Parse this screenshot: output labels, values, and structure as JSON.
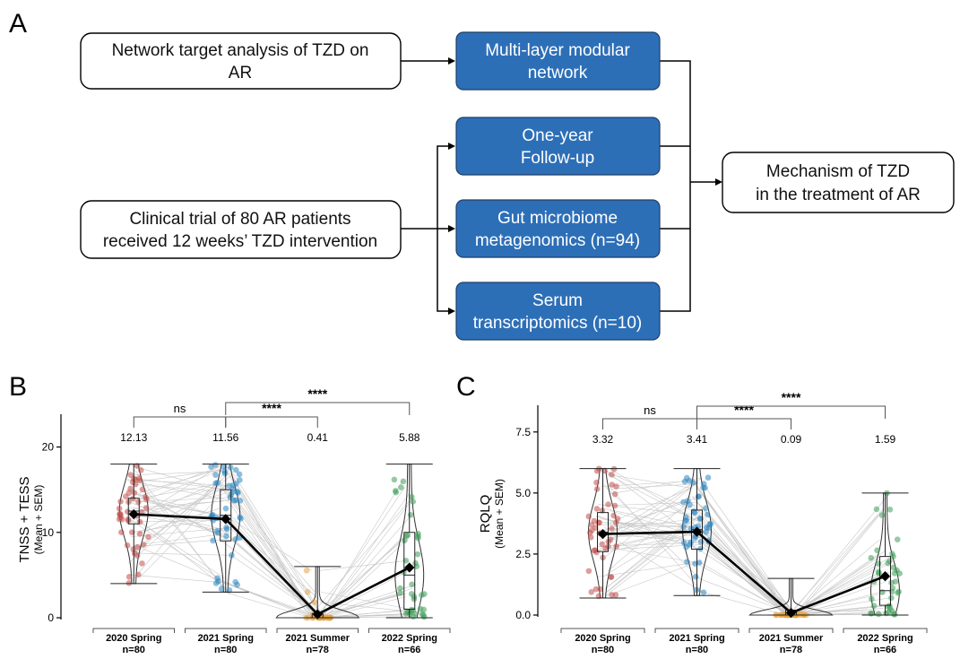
{
  "panels": {
    "a": "A",
    "b": "B",
    "c": "C"
  },
  "flow": {
    "inputs": [
      {
        "id": "network",
        "lines": [
          "Network target analysis of TZD on",
          "AR"
        ]
      },
      {
        "id": "trial",
        "lines": [
          "Clinical trial of 80 AR patients",
          "received 12 weeks’ TZD intervention"
        ]
      }
    ],
    "steps": [
      {
        "id": "modular",
        "lines": [
          "Multi-layer modular",
          "network"
        ]
      },
      {
        "id": "followup",
        "lines": [
          "One-year",
          "Follow-up"
        ]
      },
      {
        "id": "gut",
        "lines": [
          "Gut microbiome",
          "metagenomics (n=94)"
        ]
      },
      {
        "id": "serum",
        "lines": [
          "Serum",
          "transcriptomics (n=10)"
        ]
      }
    ],
    "output": {
      "id": "mechanism",
      "lines": [
        "Mechanism of TZD",
        "in the treatment of AR"
      ]
    }
  },
  "colors": {
    "spring2020": "#c0504d",
    "spring2021": "#2e86c1",
    "summer2021": "#e8a33d",
    "spring2022": "#3f9c5a",
    "step_box": "#2d6fb7"
  },
  "chart_data": [
    {
      "panel": "B",
      "type": "scatter",
      "ylabel": "TNSS + TESS",
      "ylabel_sub": "(Mean + SEM)",
      "ylim": [
        0,
        23
      ],
      "yticks": [
        0,
        10,
        20
      ],
      "categories": [
        "2020 Spring",
        "2021 Spring",
        "2021 Summer",
        "2022 Spring"
      ],
      "n_labels": [
        "n=80",
        "n=80",
        "n=78",
        "n=66"
      ],
      "means": [
        12.13,
        11.56,
        0.41,
        5.88
      ],
      "mean_labels": [
        "12.13",
        "11.56",
        "0.41",
        "5.88"
      ],
      "ranges": [
        [
          4,
          18
        ],
        [
          3,
          18
        ],
        [
          0,
          6
        ],
        [
          0,
          18
        ]
      ],
      "quartiles": [
        [
          11,
          12.5,
          14
        ],
        [
          9,
          12,
          15
        ],
        [
          0,
          0,
          0.5
        ],
        [
          1,
          5,
          10
        ]
      ],
      "comparisons": [
        {
          "from": 0,
          "to": 1,
          "label": "ns"
        },
        {
          "from": 1,
          "to": 2,
          "label": "****"
        },
        {
          "from": 1,
          "to": 3,
          "label": "****"
        }
      ]
    },
    {
      "panel": "C",
      "type": "scatter",
      "ylabel": "RQLQ",
      "ylabel_sub": "(Mean + SEM)",
      "ylim": [
        0,
        8.3
      ],
      "yticks": [
        0.0,
        2.5,
        5.0,
        7.5
      ],
      "ytick_labels": [
        "0.0",
        "2.5",
        "5.0",
        "7.5"
      ],
      "categories": [
        "2020 Spring",
        "2021 Spring",
        "2021 Summer",
        "2022 Spring"
      ],
      "n_labels": [
        "n=80",
        "n=80",
        "n=78",
        "n=66"
      ],
      "means": [
        3.32,
        3.41,
        0.09,
        1.59
      ],
      "mean_labels": [
        "3.32",
        "3.41",
        "0.09",
        "1.59"
      ],
      "ranges": [
        [
          0.7,
          6
        ],
        [
          0.8,
          6
        ],
        [
          0,
          1.5
        ],
        [
          0,
          5
        ]
      ],
      "quartiles": [
        [
          2.6,
          3.4,
          4.2
        ],
        [
          2.7,
          3.5,
          4.3
        ],
        [
          0,
          0,
          0.2
        ],
        [
          0.4,
          1.0,
          2.4
        ]
      ],
      "comparisons": [
        {
          "from": 0,
          "to": 1,
          "label": "ns"
        },
        {
          "from": 1,
          "to": 2,
          "label": "****"
        },
        {
          "from": 1,
          "to": 3,
          "label": "****"
        }
      ]
    }
  ]
}
